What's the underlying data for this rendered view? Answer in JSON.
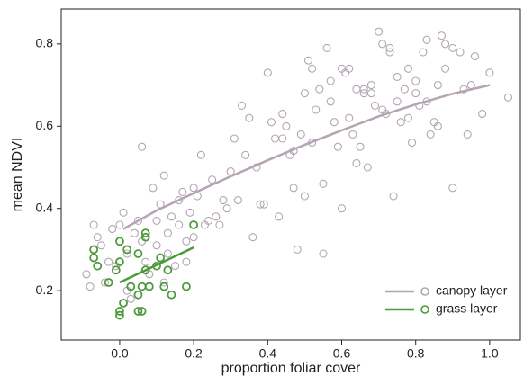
{
  "chart_data": {
    "type": "scatter",
    "x_label": "proportion foliar cover",
    "y_label": "mean NDVI",
    "xlim": [
      -0.158,
      1.083
    ],
    "ylim": [
      0.08,
      0.885
    ],
    "xticks": [
      {
        "value": 0,
        "label": "0.0"
      },
      0.2,
      0.4,
      0.6,
      0.8,
      {
        "value": 1,
        "label": "1.0"
      }
    ],
    "yticks": [
      0.2,
      0.4,
      0.6,
      0.8
    ],
    "legend": "lower right",
    "series": [
      {
        "name": "canopy layer",
        "color": "#b3a5b3",
        "x": [
          -0.09,
          -0.08,
          -0.07,
          -0.06,
          -0.05,
          -0.04,
          -0.03,
          -0.02,
          -0.01,
          0,
          0.01,
          0.02,
          0.03,
          0.04,
          0.05,
          0.06,
          0.07,
          0.08,
          0.09,
          0.1,
          0.11,
          0.12,
          0.13,
          0.14,
          0.15,
          0.16,
          0.17,
          0.18,
          0.19,
          0.2,
          0.21,
          0.22,
          0.24,
          0.25,
          0.27,
          0.28,
          0.3,
          0.31,
          0.33,
          0.35,
          0.37,
          0.39,
          0.4,
          0.41,
          0.42,
          0.44,
          0.45,
          0.46,
          0.47,
          0.48,
          0.49,
          0.5,
          0.51,
          0.52,
          0.53,
          0.54,
          0.55,
          0.56,
          0.57,
          0.58,
          0.59,
          0.6,
          0.61,
          0.62,
          0.63,
          0.64,
          0.65,
          0.66,
          0.67,
          0.68,
          0.69,
          0.7,
          0.71,
          0.72,
          0.73,
          0.74,
          0.75,
          0.76,
          0.77,
          0.78,
          0.79,
          0.8,
          0.81,
          0.82,
          0.83,
          0.84,
          0.85,
          0.86,
          0.87,
          0.88,
          0.9,
          0.92,
          0.94,
          0.96,
          0.98,
          1.0,
          1.05,
          0.06,
          0.1,
          0.13,
          0.16,
          0.2,
          0.26,
          0.32,
          0.36,
          0.43,
          0.47,
          0.52,
          0.55,
          0.6,
          0.64,
          0.68,
          0.71,
          0.75,
          0.8,
          0.86,
          0.9,
          0.95,
          0.02,
          0.08,
          0.12,
          0.18,
          0.23,
          0.29,
          0.34,
          0.38,
          0.44,
          0.5,
          0.57,
          0.62,
          0.66,
          0.73,
          0.78,
          0.83,
          0.88,
          0.93
        ],
        "y": [
          0.24,
          0.21,
          0.36,
          0.33,
          0.31,
          0.22,
          0.27,
          0.35,
          0.26,
          0.36,
          0.39,
          0.2,
          0.18,
          0.34,
          0.37,
          0.55,
          0.27,
          0.24,
          0.45,
          0.37,
          0.41,
          0.48,
          0.34,
          0.38,
          0.26,
          0.42,
          0.44,
          0.32,
          0.39,
          0.45,
          0.43,
          0.53,
          0.37,
          0.47,
          0.36,
          0.42,
          0.49,
          0.57,
          0.65,
          0.62,
          0.5,
          0.41,
          0.73,
          0.61,
          0.57,
          0.57,
          0.6,
          0.53,
          0.54,
          0.3,
          0.58,
          0.43,
          0.76,
          0.74,
          0.64,
          0.69,
          0.29,
          0.79,
          0.66,
          0.61,
          0.55,
          0.74,
          0.73,
          0.62,
          0.58,
          0.51,
          0.55,
          0.69,
          0.5,
          0.7,
          0.65,
          0.83,
          0.8,
          0.63,
          0.78,
          0.43,
          0.66,
          0.61,
          0.69,
          0.74,
          0.56,
          0.71,
          0.65,
          0.78,
          0.81,
          0.58,
          0.61,
          0.7,
          0.82,
          0.74,
          0.45,
          0.78,
          0.58,
          0.77,
          0.63,
          0.73,
          0.67,
          0.32,
          0.31,
          0.29,
          0.36,
          0.33,
          0.38,
          0.42,
          0.33,
          0.38,
          0.45,
          0.56,
          0.46,
          0.4,
          0.69,
          0.68,
          0.64,
          0.72,
          0.68,
          0.6,
          0.79,
          0.7,
          0.29,
          0.21,
          0.22,
          0.27,
          0.36,
          0.4,
          0.53,
          0.41,
          0.63,
          0.68,
          0.71,
          0.74,
          0.68,
          0.79,
          0.62,
          0.66,
          0.8,
          0.69
        ],
        "fit_x": [
          0.01,
          0.1,
          0.2,
          0.3,
          0.4,
          0.5,
          0.6,
          0.7,
          0.8,
          0.9,
          1.0
        ],
        "fit_y": [
          0.35,
          0.395,
          0.437,
          0.478,
          0.517,
          0.555,
          0.59,
          0.624,
          0.653,
          0.679,
          0.7
        ]
      },
      {
        "name": "grass layer",
        "color": "#4c9a3c",
        "x": [
          -0.07,
          -0.07,
          -0.06,
          -0.03,
          0,
          0,
          -0.01,
          0,
          0,
          0.02,
          0.03,
          0.05,
          0.05,
          0.06,
          0.06,
          0.07,
          0.07,
          0.07,
          0.08,
          0.1,
          0.11,
          0.12,
          0.13,
          0.14,
          0.18,
          0.2,
          0.05,
          0.01
        ],
        "y": [
          0.3,
          0.28,
          0.26,
          0.22,
          0.32,
          0.27,
          0.25,
          0.15,
          0.14,
          0.3,
          0.21,
          0.29,
          0.15,
          0.15,
          0.21,
          0.34,
          0.33,
          0.25,
          0.21,
          0.26,
          0.28,
          0.21,
          0.25,
          0.19,
          0.21,
          0.36,
          0.19,
          0.17
        ],
        "fit_x": [
          0.0,
          0.2
        ],
        "fit_y": [
          0.22,
          0.305
        ]
      }
    ]
  }
}
